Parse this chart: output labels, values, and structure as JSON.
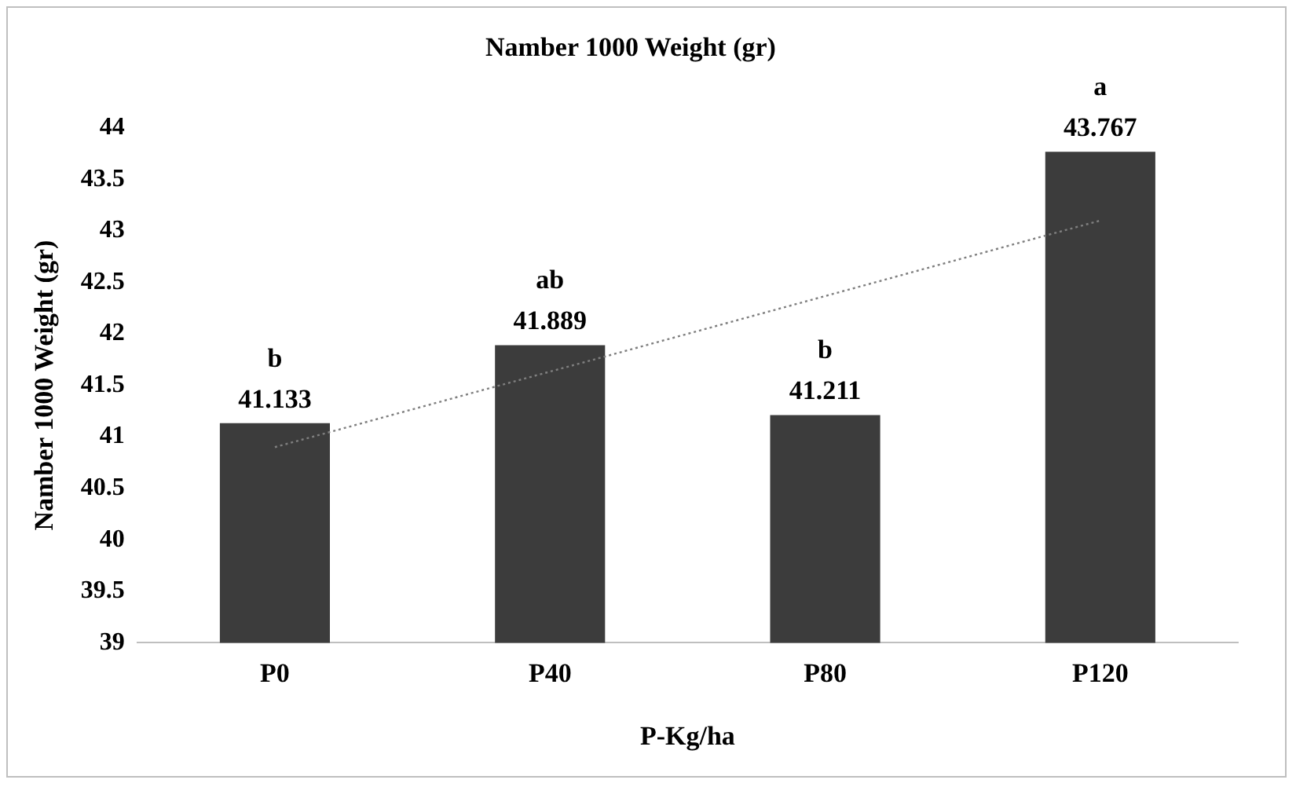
{
  "chart_data": {
    "type": "bar",
    "title": "Namber 1000 Weight (gr)",
    "xlabel": "P-Kg/ha",
    "ylabel": "Namber 1000 Weight (gr)",
    "categories": [
      "P0",
      "P40",
      "P80",
      "P120"
    ],
    "series": [
      {
        "color": "#3c3c3c",
        "values": [
          41.133,
          41.889,
          41.211,
          43.767
        ],
        "value_labels": [
          "41.133",
          "41.889",
          "41.211",
          "43.767"
        ]
      },
      {
        "type": "line",
        "color": "#7f7f7f",
        "x": [
          "P0",
          "P120"
        ],
        "values": [
          40.9,
          43.1
        ],
        "line_style": "dotted",
        "marker": "none"
      }
    ],
    "ylim": [
      39,
      44
    ],
    "yticks": [
      39,
      39.5,
      40,
      40.5,
      41,
      41.5,
      42,
      42.5,
      43,
      43.5,
      44
    ],
    "grid": false,
    "legend": false,
    "annotations": [
      {
        "text": "b",
        "x": "P0",
        "y": 41.133
      },
      {
        "text": "ab",
        "x": "P40",
        "y": 41.889
      },
      {
        "text": "b",
        "x": "P80",
        "y": 41.211
      },
      {
        "text": "a",
        "x": "P120",
        "y": 43.767
      }
    ]
  }
}
